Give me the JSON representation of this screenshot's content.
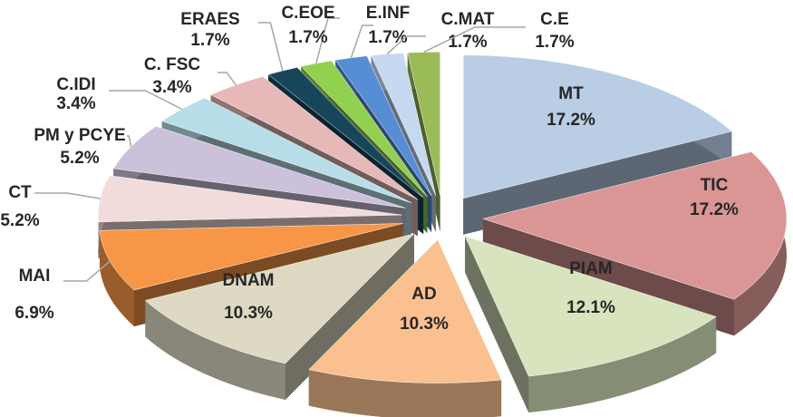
{
  "chart_data": {
    "type": "pie",
    "categories": [
      "MT",
      "TIC",
      "PIAM",
      "AD",
      "DNAM",
      "MAI",
      "CT",
      "PM y PCYE",
      "C.IDI",
      "C. FSC",
      "ERAES",
      "C.EOE",
      "E.INF",
      "C.MAT",
      "C.E"
    ],
    "values": [
      17.2,
      17.2,
      12.1,
      10.3,
      10.3,
      6.9,
      5.2,
      5.2,
      3.4,
      3.4,
      1.7,
      1.7,
      1.7,
      1.7,
      1.7
    ],
    "value_labels": [
      "17.2%",
      "17.2%",
      "12.1%",
      "10.3%",
      "10.3%",
      "6.9%",
      "5.2%",
      "5.2%",
      "3.4%",
      "3.4%",
      "1.7%",
      "1.7%",
      "1.7%",
      "1.7%",
      "1.7%"
    ],
    "colors": [
      "#b9cde5",
      "#d99694",
      "#d7e4bd",
      "#fac090",
      "#ddd9c3",
      "#f79646",
      "#f2dcdb",
      "#ccc1da",
      "#b7dee8",
      "#e6b9b8",
      "#17465a",
      "#92d050",
      "#558ed5",
      "#c6d9f1",
      "#9bbb59"
    ]
  }
}
